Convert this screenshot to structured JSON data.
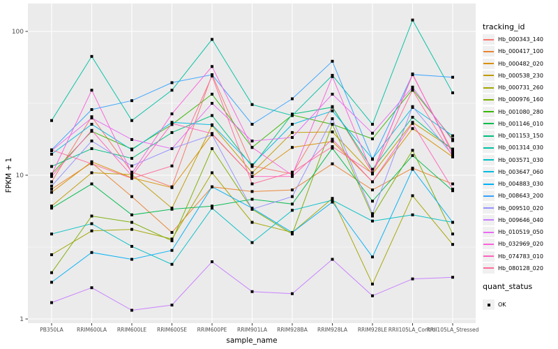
{
  "chart_data": {
    "type": "line",
    "title": "",
    "xlabel": "sample_name",
    "ylabel": "FPKM + 1",
    "yscale": "log10",
    "yticks": [
      100,
      10,
      1
    ],
    "ytick_labels": [
      "100",
      "10",
      "1"
    ],
    "minor_gridlines_at": [
      31.62,
      3.162
    ],
    "ylim": [
      0.93,
      156
    ],
    "grid": true,
    "panel_background": "#EBEBEB",
    "gridline_color": "#FFFFFF",
    "tick_label_color": "#4D4D4D",
    "marker": "black-square",
    "categories": [
      "PB350LA",
      "RRIM600LA",
      "RRIM600LE",
      "RRIM600SE",
      "RRIM600PE",
      "RRIM901LA",
      "RRIM928BA",
      "RRIM928LA",
      "RRIM928LE",
      "RRII105LA_Control",
      "RRII105LA_Stressed"
    ],
    "legend": {
      "title": "tracking_id",
      "position": "right"
    },
    "legend2": {
      "title": "quant_status",
      "items": [
        "OK"
      ]
    },
    "series": [
      {
        "name": "Hb_000343_140",
        "color": "#F8766D",
        "values": [
          9.0,
          25.5,
          10.5,
          8.3,
          50,
          11.6,
          10.2,
          30,
          10.4,
          50,
          14.5
        ]
      },
      {
        "name": "Hb_000417_100",
        "color": "#EA8331",
        "values": [
          8.0,
          12.2,
          7.1,
          4.0,
          8.3,
          7.7,
          7.9,
          12.0,
          7.9,
          11.2,
          8.7
        ]
      },
      {
        "name": "Hb_000482_020",
        "color": "#D89000",
        "values": [
          7.6,
          12.4,
          9.6,
          8.2,
          19.3,
          9.8,
          15.6,
          17.2,
          9.0,
          21.1,
          13.4
        ]
      },
      {
        "name": "Hb_000538_230",
        "color": "#C09B00",
        "values": [
          6.1,
          10.4,
          10.1,
          5.9,
          22.2,
          10.4,
          19.8,
          20.0,
          10.2,
          23.3,
          15.2
        ]
      },
      {
        "name": "Hb_000731_260",
        "color": "#A3A500",
        "values": [
          2.8,
          4.1,
          4.2,
          3.6,
          10.4,
          4.7,
          4.0,
          6.9,
          1.75,
          7.2,
          3.3
        ]
      },
      {
        "name": "Hb_000976_160",
        "color": "#7CAE00",
        "values": [
          2.1,
          5.2,
          4.7,
          3.5,
          15.3,
          5.8,
          3.9,
          22.6,
          5.2,
          14.9,
          3.9
        ]
      },
      {
        "name": "Hb_001080_280",
        "color": "#39B600",
        "values": [
          10.2,
          20.2,
          15.2,
          22.5,
          36.6,
          15.6,
          26.2,
          22.6,
          17.9,
          39.5,
          17.8
        ]
      },
      {
        "name": "Hb_001146_010",
        "color": "#00BB4E",
        "values": [
          5.9,
          8.7,
          5.3,
          5.8,
          6.1,
          6.8,
          6.3,
          15.4,
          6.6,
          13.7,
          7.8
        ]
      },
      {
        "name": "Hb_001153_150",
        "color": "#00BF7D",
        "values": [
          11.5,
          15.3,
          13.1,
          19.8,
          26,
          11.5,
          26.6,
          29.7,
          11.0,
          25.3,
          15.0
        ]
      },
      {
        "name": "Hb_001314_030",
        "color": "#00C1A3",
        "values": [
          24,
          67,
          24,
          39,
          88,
          31,
          26,
          49.5,
          22.6,
          120,
          37.4
        ]
      },
      {
        "name": "Hb_003571_030",
        "color": "#00BFC4",
        "values": [
          3.9,
          4.6,
          3.2,
          2.4,
          5.9,
          3.4,
          5.7,
          6.7,
          4.8,
          5.3,
          4.7
        ]
      },
      {
        "name": "Hb_003647_060",
        "color": "#00BAE0",
        "values": [
          14.0,
          22.6,
          15.0,
          23.3,
          22.4,
          11.8,
          22.6,
          28.0,
          13.0,
          29.6,
          18.8
        ]
      },
      {
        "name": "Hb_004883_030",
        "color": "#00B0F6",
        "values": [
          1.8,
          2.9,
          2.6,
          3.0,
          8.3,
          5.9,
          4.0,
          6.5,
          2.7,
          11.0,
          4.7
        ]
      },
      {
        "name": "Hb_008643_200",
        "color": "#35A2FF",
        "values": [
          15.0,
          28.6,
          33,
          44,
          50,
          22.6,
          34,
          62,
          12.9,
          50.2,
          48
        ]
      },
      {
        "name": "Hb_009510_020",
        "color": "#9590FF",
        "values": [
          8.4,
          17.3,
          11.6,
          15.3,
          19.1,
          5.8,
          7.1,
          24.7,
          5.4,
          30,
          13.8
        ]
      },
      {
        "name": "Hb_009646_040",
        "color": "#C77CFF",
        "values": [
          1.3,
          1.65,
          1.15,
          1.25,
          2.5,
          1.55,
          1.5,
          2.6,
          1.45,
          1.9,
          1.95
        ]
      },
      {
        "name": "Hb_010519_050",
        "color": "#E76BF3",
        "values": [
          14.8,
          25.0,
          17.7,
          15.3,
          31.6,
          17.3,
          18.3,
          36.6,
          19.6,
          41,
          17.4
        ]
      },
      {
        "name": "Hb_032969_020",
        "color": "#FA62DB",
        "values": [
          10.1,
          39,
          10.3,
          26.7,
          57,
          15.6,
          10.0,
          48.5,
          10.3,
          50.6,
          14.0
        ]
      },
      {
        "name": "Hb_074783_010",
        "color": "#FF62BC",
        "values": [
          9.8,
          20.5,
          9.9,
          22.9,
          19.5,
          9.8,
          9.8,
          17.8,
          9.0,
          22.9,
          8.0
        ]
      },
      {
        "name": "Hb_080128_020",
        "color": "#FF6A98",
        "values": [
          15.0,
          12.0,
          9.5,
          11.6,
          49,
          8.7,
          10.5,
          15.8,
          10.3,
          39.0,
          13.5
        ]
      }
    ]
  }
}
